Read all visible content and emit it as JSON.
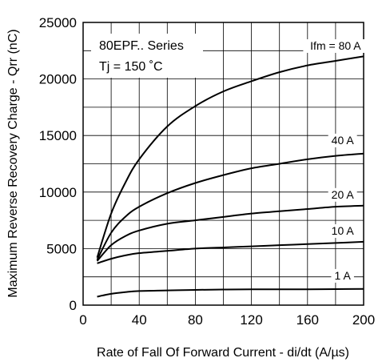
{
  "chart_data": {
    "type": "line",
    "xlabel": "Rate of Fall Of Forward Current - di/dt (A/µs)",
    "ylabel": "Maximum Reverse Recovery Charge - Qrr (nC)",
    "xlim": [
      0,
      200
    ],
    "ylim": [
      0,
      25000
    ],
    "x_ticks": [
      0,
      40,
      80,
      120,
      160,
      200
    ],
    "y_ticks": [
      0,
      5000,
      10000,
      15000,
      20000,
      25000
    ],
    "grid": true,
    "annotations": [
      "80EPF.. Series",
      "Tj = 150 ˚C"
    ],
    "series": [
      {
        "name": "Ifm = 80 A",
        "x": [
          10,
          20,
          30,
          40,
          60,
          80,
          100,
          120,
          140,
          160,
          180,
          200
        ],
        "y": [
          4200,
          8100,
          10800,
          12900,
          15800,
          17600,
          18900,
          19800,
          20600,
          21200,
          21600,
          22000
        ]
      },
      {
        "name": "40 A",
        "x": [
          10,
          20,
          30,
          40,
          60,
          80,
          100,
          120,
          140,
          160,
          180,
          200
        ],
        "y": [
          4000,
          6400,
          7800,
          8700,
          9900,
          10800,
          11500,
          12100,
          12500,
          12900,
          13200,
          13400
        ]
      },
      {
        "name": "20 A",
        "x": [
          10,
          20,
          30,
          40,
          60,
          80,
          100,
          120,
          140,
          160,
          180,
          200
        ],
        "y": [
          3900,
          5300,
          6100,
          6600,
          7200,
          7500,
          7800,
          8100,
          8300,
          8500,
          8700,
          8800
        ]
      },
      {
        "name": "10 A",
        "x": [
          10,
          20,
          30,
          40,
          60,
          80,
          100,
          120,
          140,
          160,
          180,
          200
        ],
        "y": [
          3700,
          4100,
          4400,
          4600,
          4800,
          5000,
          5100,
          5200,
          5300,
          5400,
          5500,
          5600
        ]
      },
      {
        "name": "1 A",
        "x": [
          10,
          20,
          30,
          40,
          60,
          80,
          100,
          120,
          140,
          160,
          180,
          200
        ],
        "y": [
          750,
          1000,
          1150,
          1250,
          1300,
          1350,
          1380,
          1400,
          1400,
          1400,
          1420,
          1430
        ]
      }
    ]
  }
}
